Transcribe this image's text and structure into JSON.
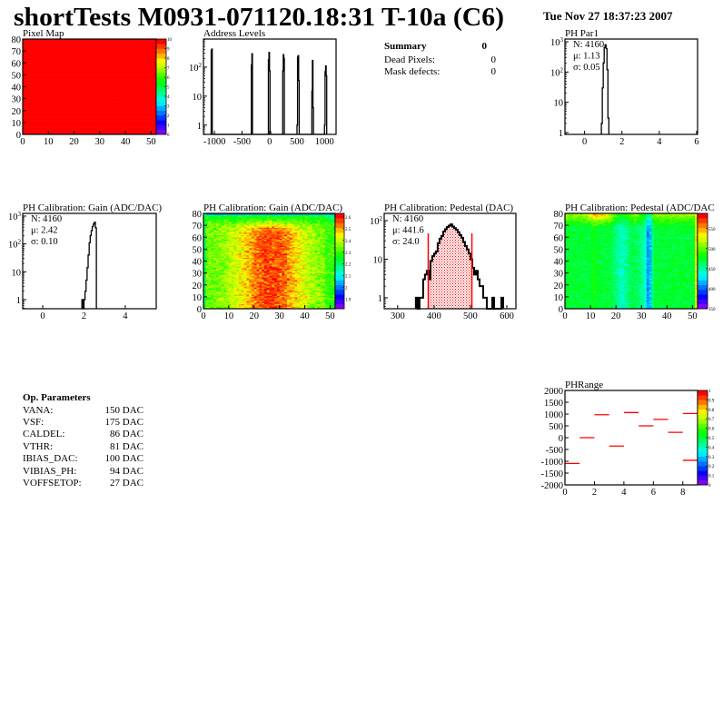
{
  "header": {
    "title": "shortTests M0931-071120.18:31 T-10a (C6)",
    "date": "Tue Nov 27 18:37:23 2007"
  },
  "summary": {
    "title": "Summary",
    "total": "0",
    "rows": [
      {
        "label": "Dead Pixels:",
        "value": "0"
      },
      {
        "label": "Mask defects:",
        "value": "0"
      }
    ]
  },
  "op_parameters": {
    "title": "Op. Parameters",
    "rows": [
      {
        "name": "VANA:",
        "value": "150 DAC"
      },
      {
        "name": "VSF:",
        "value": "175 DAC"
      },
      {
        "name": "CALDEL:",
        "value": "86 DAC"
      },
      {
        "name": "VTHR:",
        "value": "81 DAC"
      },
      {
        "name": "IBIAS_DAC:",
        "value": "100 DAC"
      },
      {
        "name": "VIBIAS_PH:",
        "value": "94 DAC"
      },
      {
        "name": "VOFFSETOP:",
        "value": "27 DAC"
      }
    ]
  },
  "colors": {
    "histogram_line": "#000000",
    "fit": "#ff0000",
    "segments": "#ff0000",
    "palette": "rainbow"
  },
  "chart_data": [
    {
      "id": "pixel_map",
      "type": "heatmap",
      "title": "Pixel Map",
      "xlim": [
        0,
        52
      ],
      "ylim": [
        0,
        80
      ],
      "zlim": [
        0,
        10
      ],
      "xticks": [
        0,
        10,
        20,
        30,
        40,
        50
      ],
      "yticks": [
        0,
        10,
        20,
        30,
        40,
        50,
        60,
        70,
        80
      ],
      "zticks": [
        0,
        1,
        2,
        3,
        4,
        5,
        6,
        7,
        8,
        9,
        10
      ],
      "nx": 52,
      "ny": 80,
      "uniform_value": 10
    },
    {
      "id": "address_levels",
      "type": "bar",
      "title": "Address Levels",
      "xlim": [
        -1200,
        1210
      ],
      "ylim": [
        0.48,
        930
      ],
      "ylog": true,
      "xticks": [
        -1000,
        -500,
        0,
        500,
        1000
      ],
      "yticks": [
        1,
        10,
        100
      ],
      "ytick_labels": [
        "1",
        "10",
        "10^2"
      ],
      "bin_width": 10,
      "x": [
        -1060,
        -1050,
        -330,
        -320,
        -20,
        -10,
        0,
        10,
        240,
        250,
        260,
        500,
        510,
        520,
        530,
        770,
        780,
        790,
        1000,
        1010,
        1020,
        1030
      ],
      "values": [
        380,
        420,
        120,
        290,
        180,
        320,
        75,
        0.6,
        75,
        270,
        200,
        1,
        220,
        250,
        35,
        15,
        170,
        4,
        1,
        70,
        110,
        50
      ]
    },
    {
      "id": "ph_par1",
      "type": "bar",
      "title": "PH Par1",
      "xlim": [
        -1.05,
        6.05
      ],
      "ylim": [
        0.87,
        1230
      ],
      "ylog": true,
      "xticks": [
        0,
        2,
        4,
        6
      ],
      "yticks": [
        1,
        10,
        100,
        1000
      ],
      "ytick_labels": [
        "1",
        "10",
        "10^2",
        "10^3"
      ],
      "bin_width": 0.05,
      "x": [
        0.9,
        0.95,
        1.0,
        1.05,
        1.1,
        1.15,
        1.2,
        1.25
      ],
      "values": [
        2,
        30,
        200,
        650,
        800,
        600,
        120,
        3
      ],
      "stats": [
        {
          "label": "N",
          "value": "4160"
        },
        {
          "label": "μ",
          "value": "1.13"
        },
        {
          "label": "σ",
          "value": "0.05"
        }
      ]
    },
    {
      "id": "gain_hist",
      "type": "bar",
      "title": "PH Calibration: Gain (ADC/DAC)",
      "xlim": [
        -0.97,
        5.5
      ],
      "ylim": [
        0.47,
        1250
      ],
      "ylog": true,
      "xticks": [
        0,
        2,
        4
      ],
      "yticks": [
        1,
        10,
        100,
        1000
      ],
      "ytick_labels": [
        "1",
        "10",
        "10^2",
        "10^3"
      ],
      "bin_width": 0.05,
      "x": [
        1.9,
        1.95,
        2.0,
        2.05,
        2.1,
        2.15,
        2.2,
        2.25,
        2.3,
        2.35,
        2.4,
        2.45,
        2.5,
        2.55
      ],
      "values": [
        1,
        0,
        1,
        2,
        5,
        14,
        40,
        110,
        200,
        300,
        420,
        520,
        600,
        380
      ],
      "stats": [
        {
          "label": "N",
          "value": "4160"
        },
        {
          "label": "μ",
          "value": "2.42"
        },
        {
          "label": "σ",
          "value": "0.10"
        }
      ]
    },
    {
      "id": "gain_map",
      "type": "heatmap",
      "title": "PH Calibration: Gain (ADC/DAC)",
      "xlim": [
        0,
        52
      ],
      "ylim": [
        0,
        80
      ],
      "zlim": [
        1.82,
        2.63
      ],
      "xticks": [
        0,
        10,
        20,
        30,
        40,
        50
      ],
      "yticks": [
        0,
        10,
        20,
        30,
        40,
        50,
        60,
        70,
        80
      ],
      "zticks": [
        1.9,
        2,
        2.1,
        2.2,
        2.3,
        2.4,
        2.5,
        2.6
      ],
      "nx": 52,
      "ny": 80
    },
    {
      "id": "pedestal_hist",
      "type": "bar",
      "title": "PH Calibration: Pedestal (DAC)",
      "xlim": [
        263,
        625
      ],
      "ylim": [
        0.52,
        154
      ],
      "ylog": true,
      "xticks": [
        300,
        400,
        500,
        600
      ],
      "yticks": [
        1,
        10,
        100
      ],
      "ytick_labels": [
        "1",
        "10",
        "10^2"
      ],
      "bin_width": 5,
      "x": [
        350,
        355,
        360,
        365,
        370,
        375,
        380,
        385,
        390,
        395,
        400,
        405,
        410,
        415,
        420,
        425,
        430,
        435,
        440,
        445,
        450,
        455,
        460,
        465,
        470,
        475,
        480,
        485,
        490,
        495,
        500,
        505,
        510,
        515,
        520,
        525,
        530,
        535,
        540,
        545,
        550,
        555,
        560,
        565,
        570,
        575,
        580,
        585
      ],
      "values": [
        1,
        0,
        1,
        1,
        3,
        4,
        5,
        3,
        9,
        12,
        14,
        16,
        26,
        34,
        40,
        52,
        60,
        68,
        74,
        80,
        70,
        64,
        58,
        50,
        42,
        36,
        28,
        22,
        18,
        14,
        10,
        6,
        4,
        5,
        3,
        2,
        2,
        1,
        1,
        0,
        0,
        0,
        1,
        0,
        0,
        0,
        0,
        1
      ],
      "fit_range": [
        384,
        504
      ],
      "stats": [
        {
          "label": "N",
          "value": "4160",
          "color": "#000000"
        },
        {
          "label": "μ",
          "value": "441.6",
          "color": "#ff0000"
        },
        {
          "label": "σ",
          "value": "24.0",
          "color": "#ff0000"
        }
      ]
    },
    {
      "id": "pedestal_map",
      "type": "heatmap",
      "title": "PH Calibration: Pedestal (ADC/DAC",
      "xlim": [
        0,
        52
      ],
      "ylim": [
        0,
        80
      ],
      "zlim": [
        350,
        588
      ],
      "xticks": [
        0,
        10,
        20,
        30,
        40,
        50
      ],
      "yticks": [
        0,
        10,
        20,
        30,
        40,
        50,
        60,
        70,
        80
      ],
      "zticks": [
        350,
        400,
        450,
        500,
        550
      ],
      "nx": 52,
      "ny": 80
    },
    {
      "id": "ph_range",
      "type": "line",
      "title": "PHRange",
      "xlim": [
        0,
        9
      ],
      "ylim": [
        -2000,
        2000
      ],
      "zlim": [
        0,
        1
      ],
      "xticks": [
        0,
        2,
        4,
        6,
        8
      ],
      "yticks": [
        -2000,
        -1500,
        -1000,
        -500,
        0,
        500,
        1000,
        1500,
        2000
      ],
      "zticks": [
        0,
        0.1,
        0.2,
        0.3,
        0.4,
        0.5,
        0.6,
        0.7,
        0.8,
        0.9,
        1
      ],
      "segments": [
        {
          "x0": 0,
          "x1": 1,
          "y": -1090
        },
        {
          "x0": 1,
          "x1": 2,
          "y": 0
        },
        {
          "x0": 2,
          "x1": 3,
          "y": 970
        },
        {
          "x0": 3,
          "x1": 4,
          "y": -355
        },
        {
          "x0": 4,
          "x1": 5,
          "y": 1065
        },
        {
          "x0": 5,
          "x1": 6,
          "y": 500
        },
        {
          "x0": 6,
          "x1": 7,
          "y": 775
        },
        {
          "x0": 7,
          "x1": 8,
          "y": 225
        },
        {
          "x0": 8,
          "x1": 9,
          "y": 1025
        },
        {
          "x0": 8,
          "x1": 9,
          "y": -960
        }
      ]
    }
  ]
}
